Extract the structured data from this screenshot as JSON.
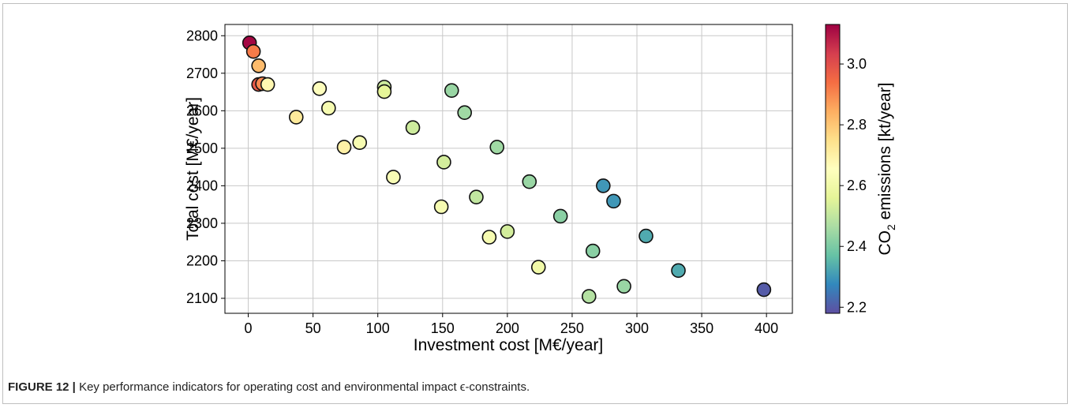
{
  "caption": {
    "label": "FIGURE 12 |",
    "text": "Key performance indicators for operating cost and environmental impact ϵ-constraints."
  },
  "chart_data": {
    "type": "scatter",
    "xlabel": "Investment cost [M€/year]",
    "ylabel": "Total cost [M€/year]",
    "xlim": [
      -18,
      420
    ],
    "ylim": [
      2060,
      2830
    ],
    "xticks": [
      0,
      50,
      100,
      150,
      200,
      250,
      300,
      350,
      400
    ],
    "yticks": [
      2100,
      2200,
      2300,
      2400,
      2500,
      2600,
      2700,
      2800
    ],
    "grid": true,
    "colorbar": {
      "label_main": "CO",
      "label_sub": "2",
      "label_rest": " emissions [kt/year]",
      "range": [
        2.18,
        3.13
      ],
      "ticks": [
        2.2,
        2.4,
        2.6,
        2.8,
        3.0
      ],
      "colormap": "Spectral_r",
      "colormap_stops": [
        "#5e4fa2",
        "#3288bd",
        "#66c2a5",
        "#abdda4",
        "#e6f598",
        "#ffffbf",
        "#fee08b",
        "#fdae61",
        "#f46d43",
        "#d53e4f",
        "#9e0142"
      ]
    },
    "points": [
      {
        "x": 1,
        "y": 2781,
        "c": 3.12
      },
      {
        "x": 4,
        "y": 2758,
        "c": 2.92
      },
      {
        "x": 8,
        "y": 2720,
        "c": 2.82
      },
      {
        "x": 8,
        "y": 2670,
        "c": 2.98
      },
      {
        "x": 11,
        "y": 2672,
        "c": 2.9
      },
      {
        "x": 15,
        "y": 2670,
        "c": 2.68
      },
      {
        "x": 37,
        "y": 2583,
        "c": 2.72
      },
      {
        "x": 55,
        "y": 2659,
        "c": 2.65
      },
      {
        "x": 62,
        "y": 2607,
        "c": 2.62
      },
      {
        "x": 74,
        "y": 2503,
        "c": 2.7
      },
      {
        "x": 86,
        "y": 2515,
        "c": 2.62
      },
      {
        "x": 105,
        "y": 2663,
        "c": 2.52
      },
      {
        "x": 105,
        "y": 2651,
        "c": 2.56
      },
      {
        "x": 112,
        "y": 2423,
        "c": 2.63
      },
      {
        "x": 127,
        "y": 2555,
        "c": 2.52
      },
      {
        "x": 149,
        "y": 2344,
        "c": 2.62
      },
      {
        "x": 151,
        "y": 2463,
        "c": 2.53
      },
      {
        "x": 157,
        "y": 2654,
        "c": 2.44
      },
      {
        "x": 167,
        "y": 2595,
        "c": 2.45
      },
      {
        "x": 176,
        "y": 2370,
        "c": 2.5
      },
      {
        "x": 186,
        "y": 2263,
        "c": 2.62
      },
      {
        "x": 192,
        "y": 2503,
        "c": 2.45
      },
      {
        "x": 200,
        "y": 2278,
        "c": 2.53
      },
      {
        "x": 217,
        "y": 2411,
        "c": 2.44
      },
      {
        "x": 224,
        "y": 2183,
        "c": 2.6
      },
      {
        "x": 241,
        "y": 2319,
        "c": 2.42
      },
      {
        "x": 263,
        "y": 2105,
        "c": 2.48
      },
      {
        "x": 266,
        "y": 2226,
        "c": 2.42
      },
      {
        "x": 274,
        "y": 2400,
        "c": 2.3
      },
      {
        "x": 282,
        "y": 2359,
        "c": 2.3
      },
      {
        "x": 290,
        "y": 2132,
        "c": 2.44
      },
      {
        "x": 307,
        "y": 2266,
        "c": 2.33
      },
      {
        "x": 332,
        "y": 2174,
        "c": 2.33
      },
      {
        "x": 398,
        "y": 2123,
        "c": 2.2
      }
    ]
  }
}
